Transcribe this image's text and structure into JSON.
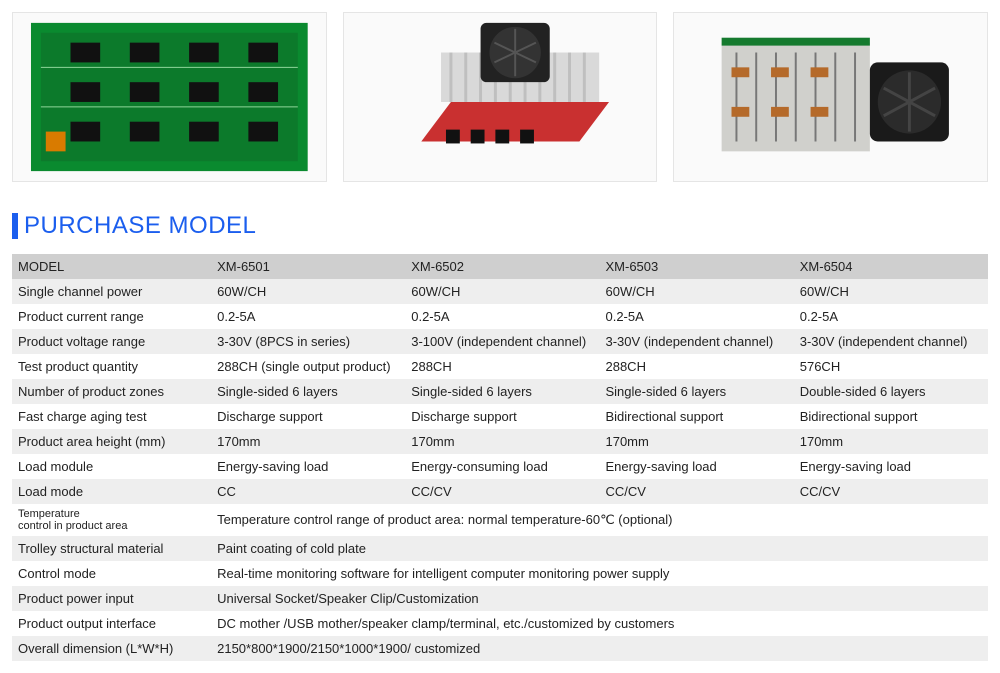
{
  "section_title": "PURCHASE MODEL",
  "accent_color": "#1b5eee",
  "images": [
    {
      "alt": "green-pcb-board"
    },
    {
      "alt": "heatsink-fan-module"
    },
    {
      "alt": "grey-power-unit-fan"
    }
  ],
  "table": {
    "background_shade": "#cfcfcf",
    "background_alt": "#eeeeee",
    "label_col_width": 200,
    "value_col_width": 195,
    "rows": [
      {
        "label": "MODEL",
        "shade": "shade",
        "values": [
          "XM-6501",
          "XM-6502",
          "XM-6503",
          "XM-6504"
        ]
      },
      {
        "label": "Single channel power",
        "shade": "alt",
        "values": [
          "60W/CH",
          "60W/CH",
          "60W/CH",
          "60W/CH"
        ]
      },
      {
        "label": "Product current range",
        "shade": "plain",
        "values": [
          "0.2-5A",
          "0.2-5A",
          "0.2-5A",
          "0.2-5A"
        ]
      },
      {
        "label": "Product voltage range",
        "shade": "alt",
        "values": [
          "3-30V (8PCS in series)",
          "3-100V (independent channel)",
          "3-30V (independent channel)",
          "3-30V (independent channel)"
        ]
      },
      {
        "label": "Test product quantity",
        "shade": "plain",
        "values": [
          "288CH (single output product)",
          "288CH",
          "288CH",
          "576CH"
        ]
      },
      {
        "label": "Number of product zones",
        "shade": "alt",
        "values": [
          "Single-sided 6 layers",
          "Single-sided 6 layers",
          "Single-sided 6 layers",
          "Double-sided 6 layers"
        ]
      },
      {
        "label": "Fast charge aging test",
        "shade": "plain",
        "values": [
          "Discharge support",
          "Discharge support",
          "Bidirectional support",
          "Bidirectional support"
        ]
      },
      {
        "label": "Product area height (mm)",
        "shade": "alt",
        "values": [
          "170mm",
          "170mm",
          "170mm",
          "170mm"
        ]
      },
      {
        "label": "Load module",
        "shade": "plain",
        "values": [
          "Energy-saving load",
          "Energy-consuming load",
          "Energy-saving load",
          "Energy-saving load"
        ]
      },
      {
        "label": "Load mode",
        "shade": "alt",
        "values": [
          "CC",
          "CC/CV",
          "CC/CV",
          "CC/CV"
        ]
      },
      {
        "label": "Temperature\ncontrol in product area",
        "shade": "plain",
        "small_label": true,
        "span_value": "Temperature control range of product area: normal temperature-60℃ (optional)"
      },
      {
        "label": "Trolley structural material",
        "shade": "alt",
        "span_value": "Paint coating of cold plate"
      },
      {
        "label": "Control mode",
        "shade": "plain",
        "span_value": "Real-time monitoring software for intelligent computer monitoring power supply"
      },
      {
        "label": "Product power input",
        "shade": "alt",
        "span_value": "Universal Socket/Speaker Clip/Customization"
      },
      {
        "label": "Product output interface",
        "shade": "plain",
        "span_value": "DC mother /USB mother/speaker clamp/terminal, etc./customized by customers"
      },
      {
        "label": "Overall dimension (L*W*H)",
        "shade": "alt",
        "span_value": "2150*800*1900/2150*1000*1900/ customized"
      }
    ]
  }
}
